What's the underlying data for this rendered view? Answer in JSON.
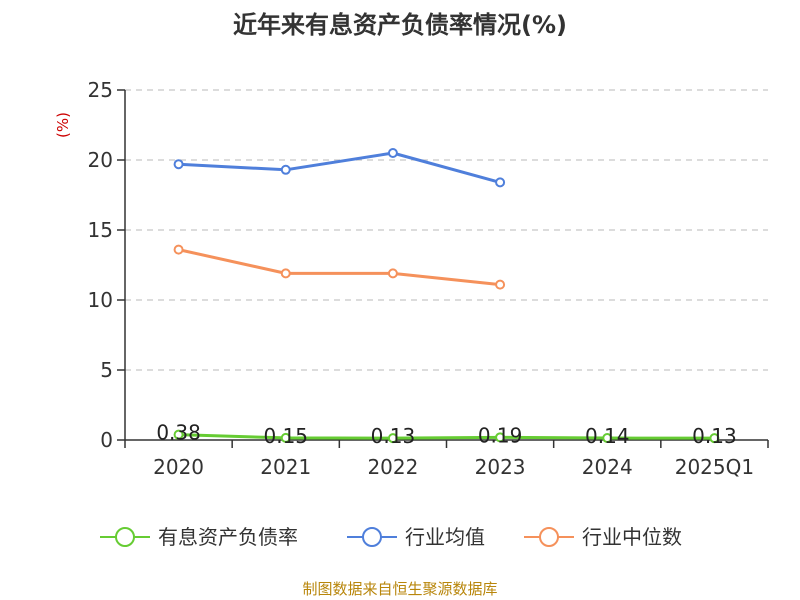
{
  "chart_data": {
    "type": "line",
    "title": "近年来有息资产负债率情况(%)",
    "ylabel": "(%)",
    "xlabel": "",
    "categories": [
      "2020",
      "2021",
      "2022",
      "2023",
      "2024",
      "2025Q1"
    ],
    "ylim": [
      0,
      25
    ],
    "yticks": [
      0,
      5,
      10,
      15,
      20,
      25
    ],
    "grid": true,
    "legend_position": "bottom",
    "series": [
      {
        "name": "有息资产负债率",
        "color": "#66cc33",
        "values": [
          0.38,
          0.15,
          0.13,
          0.19,
          0.14,
          0.13
        ],
        "labels": [
          "0.38",
          "0.15",
          "0.13",
          "0.19",
          "0.14",
          "0.13"
        ]
      },
      {
        "name": "行业均值",
        "color": "#4f7fdb",
        "values": [
          19.7,
          19.3,
          20.5,
          18.4,
          null,
          null
        ]
      },
      {
        "name": "行业中位数",
        "color": "#f5915b",
        "values": [
          13.6,
          11.9,
          11.9,
          11.1,
          null,
          null
        ]
      }
    ]
  },
  "source_text": "制图数据来自恒生聚源数据库"
}
